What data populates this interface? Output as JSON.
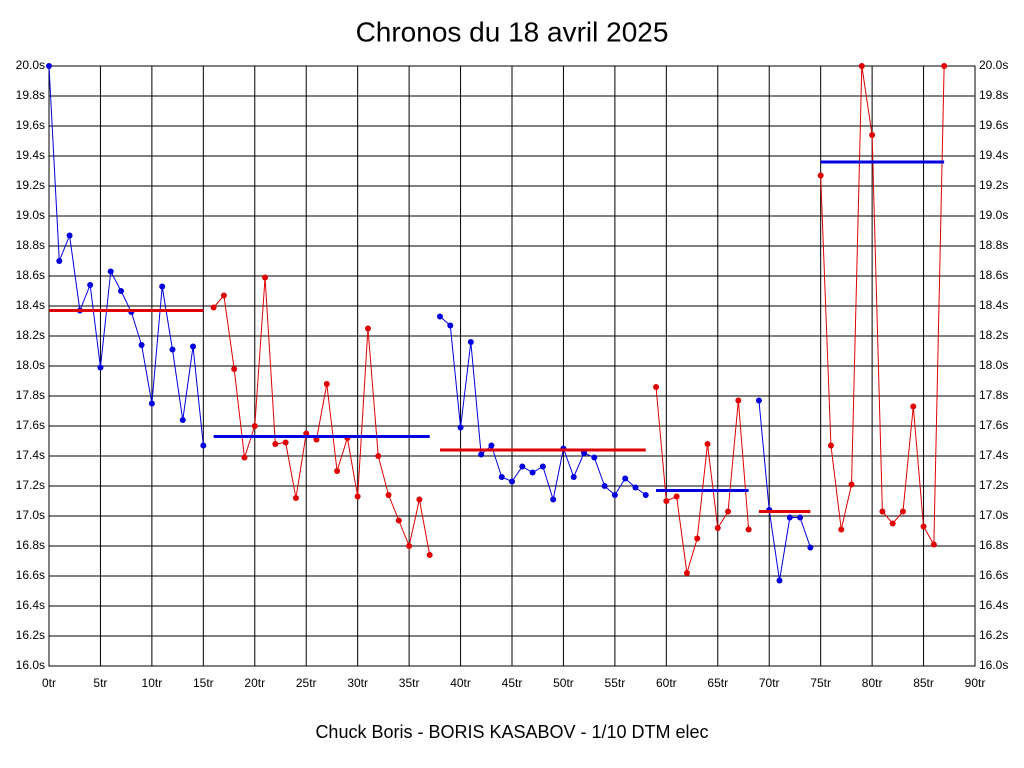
{
  "chart_data": {
    "type": "line",
    "title": "Chronos du 18 avril 2025",
    "xlabel": "Chuck Boris - BORIS KASABOV - 1/10 DTM elec",
    "xlim": [
      0,
      90
    ],
    "ylim": [
      16.0,
      20.0
    ],
    "grid": true,
    "right_axis_labels": true,
    "xticks": [
      {
        "value": 0,
        "label": "0tr"
      },
      {
        "value": 5,
        "label": "5tr"
      },
      {
        "value": 10,
        "label": "10tr"
      },
      {
        "value": 15,
        "label": "15tr"
      },
      {
        "value": 20,
        "label": "20tr"
      },
      {
        "value": 25,
        "label": "25tr"
      },
      {
        "value": 30,
        "label": "30tr"
      },
      {
        "value": 35,
        "label": "35tr"
      },
      {
        "value": 40,
        "label": "40tr"
      },
      {
        "value": 45,
        "label": "45tr"
      },
      {
        "value": 50,
        "label": "50tr"
      },
      {
        "value": 55,
        "label": "55tr"
      },
      {
        "value": 60,
        "label": "60tr"
      },
      {
        "value": 65,
        "label": "65tr"
      },
      {
        "value": 70,
        "label": "70tr"
      },
      {
        "value": 75,
        "label": "75tr"
      },
      {
        "value": 80,
        "label": "80tr"
      },
      {
        "value": 85,
        "label": "85tr"
      },
      {
        "value": 90,
        "label": "90tr"
      }
    ],
    "yticks": [
      {
        "value": 16.0,
        "label": "16.0s"
      },
      {
        "value": 16.2,
        "label": "16.2s"
      },
      {
        "value": 16.4,
        "label": "16.4s"
      },
      {
        "value": 16.6,
        "label": "16.6s"
      },
      {
        "value": 16.8,
        "label": "16.8s"
      },
      {
        "value": 17.0,
        "label": "17.0s"
      },
      {
        "value": 17.2,
        "label": "17.2s"
      },
      {
        "value": 17.4,
        "label": "17.4s"
      },
      {
        "value": 17.6,
        "label": "17.6s"
      },
      {
        "value": 17.8,
        "label": "17.8s"
      },
      {
        "value": 18.0,
        "label": "18.0s"
      },
      {
        "value": 18.2,
        "label": "18.2s"
      },
      {
        "value": 18.4,
        "label": "18.4s"
      },
      {
        "value": 18.6,
        "label": "18.6s"
      },
      {
        "value": 18.8,
        "label": "18.8s"
      },
      {
        "value": 19.0,
        "label": "19.0s"
      },
      {
        "value": 19.2,
        "label": "19.2s"
      },
      {
        "value": 19.4,
        "label": "19.4s"
      },
      {
        "value": 19.6,
        "label": "19.6s"
      },
      {
        "value": 19.8,
        "label": "19.8s"
      },
      {
        "value": 20.0,
        "label": "20.0s"
      }
    ],
    "series": [
      {
        "color": "#0000e0",
        "average_color": "#e00000",
        "average": 18.37,
        "x": [
          0,
          1,
          2,
          3,
          4,
          5,
          6,
          7,
          8,
          9,
          10,
          11,
          12,
          13,
          14,
          15
        ],
        "values": [
          20.0,
          18.7,
          18.87,
          18.37,
          18.54,
          17.99,
          18.63,
          18.5,
          18.36,
          18.14,
          17.75,
          18.53,
          18.11,
          17.64,
          18.13,
          17.47
        ]
      },
      {
        "color": "#e00000",
        "average_color": "#0000e0",
        "average": 17.53,
        "x": [
          16,
          17,
          18,
          19,
          20,
          21,
          22,
          23,
          24,
          25,
          26,
          27,
          28,
          29,
          30,
          31,
          32,
          33,
          34,
          35,
          36,
          37
        ],
        "values": [
          18.39,
          18.47,
          17.98,
          17.39,
          17.6,
          18.59,
          17.48,
          17.49,
          17.12,
          17.55,
          17.51,
          17.88,
          17.3,
          17.52,
          17.13,
          18.25,
          17.4,
          17.14,
          16.97,
          16.8,
          17.11,
          16.74
        ]
      },
      {
        "color": "#0000e0",
        "average_color": "#e00000",
        "average": 17.44,
        "x": [
          38,
          39,
          40,
          41,
          42,
          43,
          44,
          45,
          46,
          47,
          48,
          49,
          50,
          51,
          52,
          53,
          54,
          55,
          56,
          57,
          58
        ],
        "values": [
          18.33,
          18.27,
          17.59,
          18.16,
          17.41,
          17.47,
          17.26,
          17.23,
          17.33,
          17.29,
          17.33,
          17.11,
          17.45,
          17.26,
          17.42,
          17.39,
          17.2,
          17.14,
          17.25,
          17.19,
          17.14
        ]
      },
      {
        "color": "#e00000",
        "average_color": "#0000e0",
        "average": 17.17,
        "x": [
          59,
          60,
          61,
          62,
          63,
          64,
          65,
          66,
          67,
          68
        ],
        "values": [
          17.86,
          17.1,
          17.13,
          16.62,
          16.85,
          17.48,
          16.92,
          17.03,
          17.77,
          16.91
        ]
      },
      {
        "color": "#0000e0",
        "average_color": "#e00000",
        "average": 17.03,
        "x": [
          69,
          70,
          71,
          72,
          73,
          74
        ],
        "values": [
          17.77,
          17.04,
          16.57,
          16.99,
          16.99,
          16.79
        ]
      },
      {
        "color": "#e00000",
        "average_color": "#0000e0",
        "average": 19.36,
        "x": [
          75,
          76,
          77,
          78,
          79,
          80,
          81,
          82,
          83,
          84,
          85,
          86,
          87
        ],
        "values": [
          19.27,
          17.47,
          16.91,
          17.21,
          20.0,
          19.54,
          17.03,
          16.95,
          17.03,
          17.73,
          16.93,
          16.81,
          20.0
        ]
      }
    ]
  }
}
